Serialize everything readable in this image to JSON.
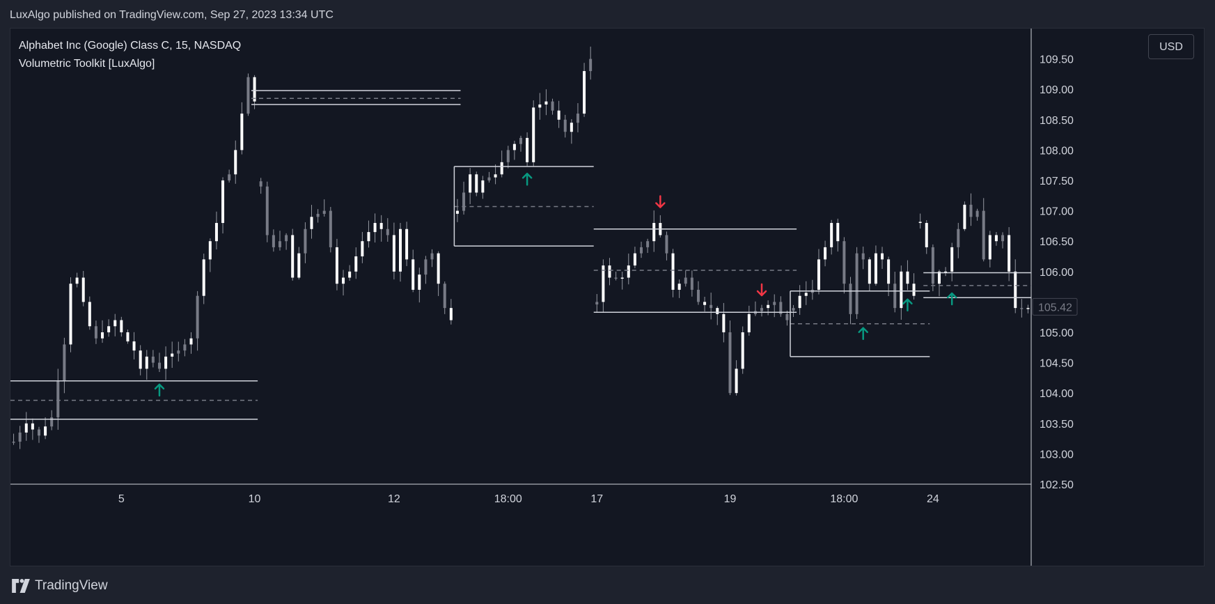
{
  "header": {
    "published": "LuxAlgo published on TradingView.com, Sep 27, 2023 13:34 UTC"
  },
  "legend": {
    "symbol": "Alphabet Inc (Google) Class C, 15, NASDAQ",
    "indicator": "Volumetric Toolkit [LuxAlgo]"
  },
  "currency_button": "USD",
  "footer": {
    "brand": "TradingView"
  },
  "colors": {
    "background": "#131722",
    "candle": "#ffffff",
    "wick": "#9598a1",
    "level_line": "#d1d4dc",
    "up_arrow": "#089981",
    "down_arrow": "#f23645"
  },
  "chart_data": {
    "type": "candlestick",
    "title": "",
    "xlabel": "",
    "ylabel": "",
    "ylim": [
      102.5,
      110.0
    ],
    "y_ticks": [
      "109.50",
      "109.00",
      "108.50",
      "108.00",
      "107.50",
      "107.00",
      "106.50",
      "106.00",
      "105.50",
      "105.00",
      "104.50",
      "104.00",
      "103.50",
      "103.00",
      "102.50"
    ],
    "last_price": "105.42",
    "x_ticks": [
      {
        "label": "5",
        "bar": 17
      },
      {
        "label": "10",
        "bar": 38
      },
      {
        "label": "12",
        "bar": 60
      },
      {
        "label": "18:00",
        "bar": 78
      },
      {
        "label": "17",
        "bar": 92
      },
      {
        "label": "19",
        "bar": 113
      },
      {
        "label": "18:00",
        "bar": 131
      },
      {
        "label": "24",
        "bar": 145
      }
    ],
    "close_path": [
      [
        0,
        103.2
      ],
      [
        2,
        103.5
      ],
      [
        4,
        103.3
      ],
      [
        6,
        103.6
      ],
      [
        8,
        104.8
      ],
      [
        9,
        105.8
      ],
      [
        10,
        105.9
      ],
      [
        11,
        105.5
      ],
      [
        12,
        105.1
      ],
      [
        13,
        104.9
      ],
      [
        15,
        105.1
      ],
      [
        16,
        105.2
      ],
      [
        17,
        105.0
      ],
      [
        19,
        104.7
      ],
      [
        20,
        104.4
      ],
      [
        21,
        104.6
      ],
      [
        23,
        104.4
      ],
      [
        24,
        104.6
      ],
      [
        26,
        104.7
      ],
      [
        28,
        104.9
      ],
      [
        29,
        105.6
      ],
      [
        30,
        106.2
      ],
      [
        32,
        106.8
      ],
      [
        33,
        107.5
      ],
      [
        34,
        107.6
      ],
      [
        35,
        108.0
      ],
      [
        36,
        108.6
      ],
      [
        37,
        109.2
      ],
      [
        38,
        108.8
      ],
      [
        39,
        108.9
      ],
      [
        39,
        107.4
      ],
      [
        40,
        106.6
      ],
      [
        41,
        106.4
      ],
      [
        43,
        106.6
      ],
      [
        44,
        105.9
      ],
      [
        46,
        106.7
      ],
      [
        47,
        106.9
      ],
      [
        49,
        107.0
      ],
      [
        50,
        106.4
      ],
      [
        51,
        105.8
      ],
      [
        53,
        106.0
      ],
      [
        55,
        106.5
      ],
      [
        57,
        106.8
      ],
      [
        59,
        106.6
      ],
      [
        60,
        106.0
      ],
      [
        61,
        106.7
      ],
      [
        63,
        105.7
      ],
      [
        65,
        106.2
      ],
      [
        66,
        106.3
      ],
      [
        67,
        105.8
      ],
      [
        68,
        105.4
      ],
      [
        69,
        105.2
      ],
      [
        70,
        107.0
      ],
      [
        72,
        107.6
      ],
      [
        73,
        107.3
      ],
      [
        74,
        107.5
      ],
      [
        76,
        107.6
      ],
      [
        77,
        107.8
      ],
      [
        78,
        108.0
      ],
      [
        80,
        108.2
      ],
      [
        81,
        107.8
      ],
      [
        82,
        108.7
      ],
      [
        84,
        108.8
      ],
      [
        86,
        108.5
      ],
      [
        87,
        108.3
      ],
      [
        89,
        108.6
      ],
      [
        90,
        109.3
      ],
      [
        91,
        109.5
      ],
      [
        92,
        105.5
      ],
      [
        93,
        106.1
      ],
      [
        94,
        105.9
      ],
      [
        96,
        105.9
      ],
      [
        98,
        106.3
      ],
      [
        100,
        106.5
      ],
      [
        101,
        106.8
      ],
      [
        102,
        106.6
      ],
      [
        103,
        106.3
      ],
      [
        104,
        105.7
      ],
      [
        106,
        105.9
      ],
      [
        108,
        105.5
      ],
      [
        110,
        105.4
      ],
      [
        111,
        105.3
      ],
      [
        112,
        105.0
      ],
      [
        113,
        104.0
      ],
      [
        114,
        104.4
      ],
      [
        115,
        105.0
      ],
      [
        116,
        105.3
      ],
      [
        118,
        105.4
      ],
      [
        120,
        105.5
      ],
      [
        121,
        105.3
      ],
      [
        122,
        105.2
      ],
      [
        123,
        105.4
      ],
      [
        124,
        105.6
      ],
      [
        126,
        105.7
      ],
      [
        127,
        106.2
      ],
      [
        128,
        106.4
      ],
      [
        129,
        106.8
      ],
      [
        130,
        106.5
      ],
      [
        131,
        105.8
      ],
      [
        132,
        105.3
      ],
      [
        133,
        106.3
      ],
      [
        134,
        106.2
      ],
      [
        135,
        105.8
      ],
      [
        136,
        106.3
      ],
      [
        137,
        106.2
      ],
      [
        138,
        105.8
      ],
      [
        139,
        105.4
      ],
      [
        140,
        106.0
      ],
      [
        141,
        105.8
      ],
      [
        142,
        105.6
      ],
      [
        143,
        106.8
      ],
      [
        144,
        106.4
      ],
      [
        145,
        105.8
      ],
      [
        146,
        106.0
      ],
      [
        147,
        106.0
      ],
      [
        148,
        106.4
      ],
      [
        149,
        106.7
      ],
      [
        150,
        107.1
      ],
      [
        151,
        106.9
      ],
      [
        152,
        107.0
      ],
      [
        153,
        106.2
      ],
      [
        154,
        106.6
      ],
      [
        155,
        106.5
      ],
      [
        156,
        106.6
      ],
      [
        157,
        106.0
      ],
      [
        158,
        105.4
      ]
    ],
    "levels": [
      {
        "x1": 0,
        "x2": 38,
        "top": 104.2,
        "mid": 103.88,
        "bottom": 103.57
      },
      {
        "x1": 38,
        "x2": 70,
        "top": 108.98,
        "mid": 108.85,
        "bottom": 108.75
      },
      {
        "x1": 70,
        "x2": 91,
        "top": 107.73,
        "mid": 107.07,
        "bottom": 106.42
      },
      {
        "x1": 92,
        "x2": 123,
        "top": 106.7,
        "mid": 106.02,
        "bottom": 105.33
      },
      {
        "x1": 123,
        "x2": 144,
        "top": 105.68,
        "mid": 105.14,
        "bottom": 104.6
      },
      {
        "x1": 144,
        "x2": 160,
        "top": 105.98,
        "mid": 105.77,
        "bottom": 105.57
      }
    ],
    "signals": [
      {
        "type": "up",
        "bar": 23,
        "price": 104.05
      },
      {
        "type": "up",
        "bar": 81,
        "price": 107.52
      },
      {
        "type": "down",
        "bar": 102,
        "price": 107.15
      },
      {
        "type": "down",
        "bar": 118,
        "price": 105.7
      },
      {
        "type": "up",
        "bar": 134,
        "price": 104.98
      },
      {
        "type": "up",
        "bar": 141,
        "price": 105.45
      },
      {
        "type": "up",
        "bar": 148,
        "price": 105.55
      }
    ],
    "session_gaps": [
      38,
      69,
      91,
      122,
      142
    ],
    "total_bars": 161
  }
}
